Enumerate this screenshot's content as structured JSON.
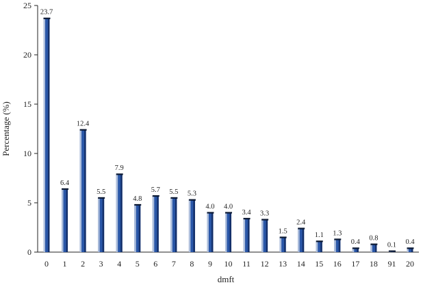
{
  "chart_data": {
    "type": "bar",
    "xlabel": "dmft",
    "ylabel": "Percentage (%)",
    "ylim": [
      0,
      25
    ],
    "yticks": [
      "0",
      "5",
      "10",
      "15",
      "20",
      "25"
    ],
    "categories": [
      "0",
      "1",
      "2",
      "3",
      "4",
      "5",
      "6",
      "7",
      "8",
      "9",
      "10",
      "11",
      "12",
      "13",
      "14",
      "15",
      "16",
      "17",
      "18",
      "91",
      "20"
    ],
    "values": [
      23.7,
      6.4,
      12.4,
      5.5,
      7.9,
      4.8,
      5.7,
      5.5,
      5.3,
      4.0,
      4.0,
      3.4,
      3.3,
      1.5,
      2.4,
      1.1,
      1.3,
      0.4,
      0.8,
      0.1,
      0.4
    ],
    "data_labels": [
      "23.7",
      "6.4",
      "12.4",
      "5.5",
      "7.9",
      "4.8",
      "5.7",
      "5.5",
      "5.3",
      "4.0",
      "4.0",
      "3.4",
      "3.3",
      "1.5",
      "2.4",
      "1.1",
      "1.3",
      "0.4",
      "0.8",
      "0.1",
      "0.4"
    ],
    "grid": false,
    "colors": {
      "bar_front": "#2a57a8",
      "bar_highlight": "#aebfdc",
      "bar_dark": "#14306a",
      "bar_top": "#0d1a33"
    }
  }
}
